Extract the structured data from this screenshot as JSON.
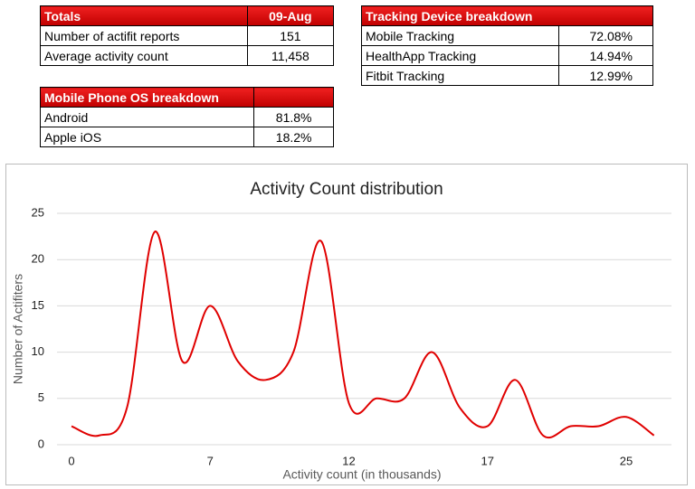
{
  "totals": {
    "header": [
      "Totals",
      "09-Aug"
    ],
    "rows": [
      [
        "Number of actifit reports",
        "151"
      ],
      [
        "Average activity count",
        "11,458"
      ]
    ]
  },
  "tracking": {
    "header": [
      "Tracking Device breakdown"
    ],
    "rows": [
      [
        "Mobile Tracking",
        "72.08%"
      ],
      [
        "HealthApp Tracking",
        "14.94%"
      ],
      [
        "Fitbit Tracking",
        "12.99%"
      ]
    ]
  },
  "os": {
    "header": [
      "Mobile Phone OS breakdown"
    ],
    "rows": [
      [
        "Android",
        "81.8%"
      ],
      [
        "Apple iOS",
        "18.2%"
      ]
    ]
  },
  "chart_data": {
    "type": "line",
    "title": "Activity Count distribution",
    "x_label": "Activity count (in thousands)",
    "y_label": "Number of Actifiters",
    "categories": [
      "0",
      null,
      null,
      null,
      null,
      "7",
      null,
      null,
      null,
      null,
      "12",
      null,
      null,
      null,
      null,
      "17",
      null,
      null,
      null,
      null,
      "25",
      null
    ],
    "series": [
      {
        "name": "Actifiters",
        "color": "#e00000",
        "values": [
          2,
          1,
          4,
          23,
          9,
          15,
          9,
          7,
          10,
          22,
          4.5,
          5,
          5,
          10,
          4,
          2,
          7,
          1,
          2,
          2,
          3,
          1
        ]
      }
    ],
    "ylim": [
      0,
      25
    ],
    "yticks": [
      0,
      5,
      10,
      15,
      20,
      25
    ],
    "grid": true
  }
}
